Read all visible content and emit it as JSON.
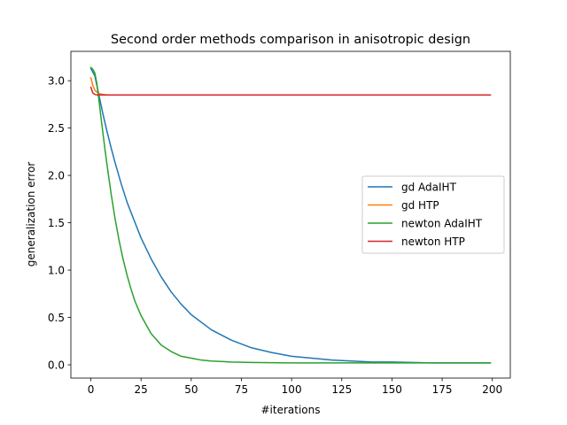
{
  "chart_data": {
    "type": "line",
    "title": "Second order methods comparison in anisotropic design",
    "xlabel": "#iterations",
    "ylabel": "generalization error",
    "xlim": [
      -9.95,
      208.95
    ],
    "ylim": [
      -0.14,
      3.31
    ],
    "xticks": [
      0,
      25,
      50,
      75,
      100,
      125,
      150,
      175,
      200
    ],
    "yticks": [
      0.0,
      0.5,
      1.0,
      1.5,
      2.0,
      2.5,
      3.0
    ],
    "grid": false,
    "legend_position": "center-right",
    "series": [
      {
        "name": "gd AdaIHT",
        "color": "#1f77b4",
        "x": [
          0,
          2,
          4,
          6,
          8,
          10,
          12,
          15,
          18,
          20,
          25,
          30,
          35,
          40,
          45,
          50,
          60,
          70,
          80,
          90,
          100,
          110,
          120,
          130,
          140,
          150,
          160,
          170,
          180,
          190,
          199
        ],
        "y": [
          3.13,
          3.05,
          2.85,
          2.65,
          2.47,
          2.3,
          2.14,
          1.92,
          1.72,
          1.61,
          1.34,
          1.12,
          0.93,
          0.77,
          0.64,
          0.53,
          0.37,
          0.26,
          0.18,
          0.13,
          0.09,
          0.07,
          0.05,
          0.04,
          0.03,
          0.03,
          0.025,
          0.02,
          0.02,
          0.02,
          0.02
        ]
      },
      {
        "name": "gd HTP",
        "color": "#ff7f0e",
        "x": [
          0,
          1,
          2,
          3,
          4,
          5,
          6,
          8,
          10,
          15,
          20,
          50,
          100,
          150,
          199
        ],
        "y": [
          3.03,
          2.95,
          2.9,
          2.88,
          2.865,
          2.86,
          2.855,
          2.85,
          2.85,
          2.85,
          2.85,
          2.85,
          2.85,
          2.85,
          2.85
        ]
      },
      {
        "name": "newton AdaIHT",
        "color": "#2ca02c",
        "x": [
          0,
          1,
          2,
          3,
          4,
          5,
          6,
          7,
          8,
          10,
          12,
          14,
          16,
          18,
          20,
          22,
          25,
          30,
          35,
          40,
          45,
          50,
          55,
          60,
          70,
          80,
          100,
          125,
          150,
          175,
          199
        ],
        "y": [
          3.14,
          3.12,
          3.08,
          2.97,
          2.8,
          2.62,
          2.45,
          2.28,
          2.12,
          1.82,
          1.55,
          1.32,
          1.12,
          0.95,
          0.8,
          0.67,
          0.52,
          0.33,
          0.21,
          0.14,
          0.09,
          0.07,
          0.05,
          0.04,
          0.03,
          0.025,
          0.02,
          0.02,
          0.02,
          0.02,
          0.02
        ]
      },
      {
        "name": "newton HTP",
        "color": "#d62728",
        "x": [
          0,
          1,
          2,
          3,
          4,
          5,
          6,
          8,
          10,
          20,
          50,
          100,
          150,
          199
        ],
        "y": [
          2.93,
          2.87,
          2.855,
          2.85,
          2.85,
          2.85,
          2.85,
          2.85,
          2.85,
          2.85,
          2.85,
          2.85,
          2.85,
          2.85
        ]
      }
    ]
  }
}
